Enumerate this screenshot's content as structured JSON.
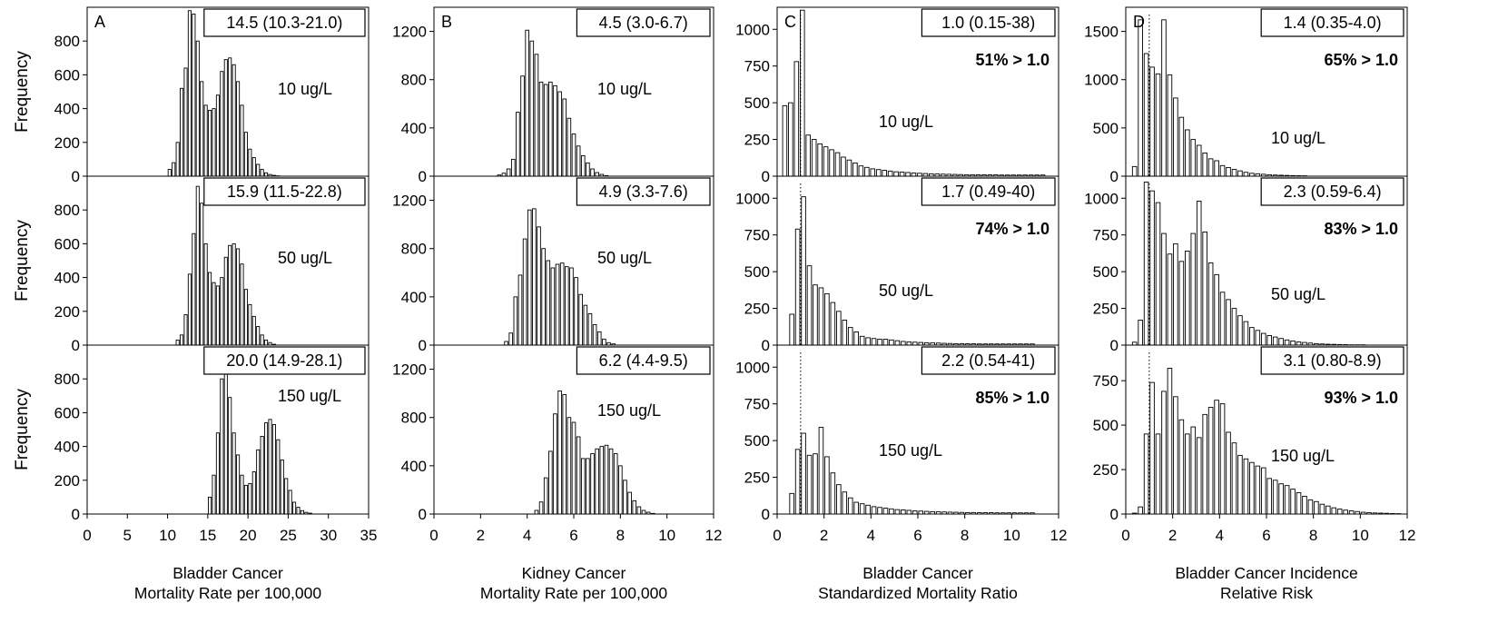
{
  "chart_data": {
    "type": "bar",
    "ylabel": "Frequency",
    "columns": [
      {
        "id": "A",
        "letter": "A",
        "xlabel_lines": [
          "Bladder Cancer",
          "Mortality Rate per 100,000"
        ],
        "xlim": [
          0,
          35
        ],
        "xticks": [
          "0",
          "5",
          "10",
          "15",
          "20",
          "25",
          "30",
          "35"
        ],
        "panels": [
          {
            "dose": "10 ug/L",
            "ci": "14.5 (10.3-21.0)",
            "pct": "",
            "ylim": [
              0,
              1000
            ],
            "yticks": [
              "0",
              "200",
              "400",
              "600",
              "800"
            ],
            "bin_start": 10.0,
            "bin_width": 0.5,
            "values": [
              40,
              80,
              200,
              520,
              640,
              980,
              960,
              800,
              560,
              420,
              390,
              400,
              480,
              620,
              690,
              700,
              660,
              560,
              420,
              260,
              160,
              110,
              70,
              40,
              20,
              10,
              5,
              2
            ]
          },
          {
            "dose": "50 ug/L",
            "ci": "15.9 (11.5-22.8)",
            "pct": "",
            "ylim": [
              0,
              1000
            ],
            "yticks": [
              "0",
              "200",
              "400",
              "600",
              "800"
            ],
            "bin_start": 11.0,
            "bin_width": 0.5,
            "values": [
              30,
              60,
              180,
              420,
              660,
              940,
              840,
              600,
              430,
              370,
              350,
              400,
              520,
              590,
              600,
              570,
              480,
              330,
              240,
              170,
              110,
              60,
              30,
              15,
              5
            ]
          },
          {
            "dose": "150 ug/L",
            "ci": "20.0 (14.9-28.1)",
            "pct": "",
            "ylim": [
              0,
              1000
            ],
            "yticks": [
              "0",
              "200",
              "400",
              "600",
              "800"
            ],
            "bin_start": 15.0,
            "bin_width": 0.5,
            "values": [
              100,
              230,
              480,
              800,
              830,
              690,
              480,
              350,
              230,
              170,
              180,
              250,
              380,
              460,
              540,
              560,
              530,
              440,
              320,
              210,
              140,
              70,
              40,
              20,
              10,
              5
            ]
          }
        ]
      },
      {
        "id": "B",
        "letter": "B",
        "xlabel_lines": [
          "Kidney  Cancer",
          "Mortality Rate per 100,000"
        ],
        "xlim": [
          0,
          12
        ],
        "xticks": [
          "0",
          "2",
          "4",
          "6",
          "8",
          "10",
          "12"
        ],
        "panels": [
          {
            "dose": "10 ug/L",
            "ci": "4.5 (3.0-6.7)",
            "pct": "",
            "ylim": [
              0,
              1400
            ],
            "yticks": [
              "0",
              "400",
              "800",
              "1200"
            ],
            "bin_start": 2.7,
            "bin_width": 0.2,
            "values": [
              10,
              25,
              60,
              140,
              530,
              830,
              1210,
              1120,
              1010,
              780,
              760,
              780,
              750,
              700,
              640,
              480,
              350,
              250,
              170,
              110,
              60,
              30,
              15,
              5
            ]
          },
          {
            "dose": "50 ug/L",
            "ci": "4.9 (3.3-7.6)",
            "pct": "",
            "ylim": [
              0,
              1400
            ],
            "yticks": [
              "0",
              "400",
              "800",
              "1200"
            ],
            "bin_start": 3.0,
            "bin_width": 0.2,
            "values": [
              30,
              100,
              400,
              580,
              880,
              1120,
              1130,
              980,
              800,
              700,
              640,
              670,
              680,
              650,
              640,
              560,
              420,
              330,
              260,
              170,
              110,
              50,
              20,
              10
            ]
          },
          {
            "dose": "150 ug/L",
            "ci": "6.2 (4.4-9.5)",
            "pct": "",
            "ylim": [
              0,
              1400
            ],
            "yticks": [
              "0",
              "400",
              "800",
              "1200"
            ],
            "bin_start": 4.3,
            "bin_width": 0.2,
            "values": [
              30,
              100,
              300,
              520,
              830,
              1020,
              990,
              800,
              760,
              640,
              460,
              460,
              500,
              540,
              560,
              570,
              540,
              500,
              400,
              280,
              180,
              110,
              60,
              30,
              15,
              5
            ]
          }
        ]
      },
      {
        "id": "C",
        "letter": "C",
        "xlabel_lines": [
          "Bladder Cancer",
          "Standardized Mortality Ratio"
        ],
        "xlim": [
          0,
          12
        ],
        "xticks": [
          "0",
          "2",
          "4",
          "6",
          "8",
          "10",
          "12"
        ],
        "ref_line": 1.0,
        "panels": [
          {
            "dose": "10 ug/L",
            "ci": "1.0 (0.15-38)",
            "pct": "51% > 1.0",
            "ylim": [
              0,
              1150
            ],
            "yticks": [
              "0",
              "250",
              "500",
              "750",
              "1000"
            ],
            "bin_start": 0.2,
            "bin_width": 0.25,
            "values": [
              480,
              500,
              780,
              1130,
              280,
              250,
              220,
              200,
              180,
              160,
              130,
              110,
              90,
              70,
              60,
              50,
              45,
              40,
              35,
              30,
              28,
              25,
              22,
              20,
              18,
              16,
              15,
              14,
              13,
              12,
              11,
              10,
              10,
              10,
              9,
              9,
              9,
              8,
              8,
              8,
              8,
              8,
              8,
              8,
              8
            ]
          },
          {
            "dose": "50 ug/L",
            "ci": "1.7 (0.49-40)",
            "pct": "74% > 1.0",
            "ylim": [
              0,
              1150
            ],
            "yticks": [
              "0",
              "250",
              "500",
              "750",
              "1000"
            ],
            "bin_start": 0.5,
            "bin_width": 0.25,
            "values": [
              210,
              790,
              1010,
              540,
              410,
              390,
              350,
              290,
              230,
              170,
              120,
              90,
              60,
              50,
              45,
              40,
              40,
              35,
              30,
              25,
              22,
              20,
              18,
              16,
              15,
              14,
              12,
              11,
              10,
              10,
              9,
              9,
              8,
              8,
              8,
              8,
              8,
              8,
              8,
              8,
              8,
              8
            ]
          },
          {
            "dose": "150 ug/L",
            "ci": "2.2 (0.54-41)",
            "pct": "85% > 1.0",
            "ylim": [
              0,
              1150
            ],
            "yticks": [
              "0",
              "250",
              "500",
              "750",
              "1000"
            ],
            "bin_start": 0.5,
            "bin_width": 0.25,
            "values": [
              140,
              440,
              550,
              400,
              410,
              590,
              390,
              280,
              200,
              150,
              110,
              80,
              70,
              60,
              50,
              45,
              40,
              35,
              30,
              28,
              25,
              22,
              20,
              18,
              16,
              15,
              14,
              13,
              12,
              11,
              10,
              10,
              9,
              9,
              9,
              8,
              8,
              8,
              8,
              8,
              8,
              8
            ]
          }
        ]
      },
      {
        "id": "D",
        "letter": "D",
        "xlabel_lines": [
          "Bladder Cancer Incidence",
          "Relative Risk"
        ],
        "xlim": [
          0,
          12
        ],
        "xticks": [
          "0",
          "2",
          "4",
          "6",
          "8",
          "10",
          "12"
        ],
        "ref_line": 1.0,
        "panels": [
          {
            "dose": "10 ug/L",
            "ci": "1.4 (0.35-4.0)",
            "pct": "65% > 1.0",
            "ylim": [
              0,
              1750
            ],
            "yticks": [
              "0",
              "500",
              "1000",
              "1500"
            ],
            "bin_start": 0.25,
            "bin_width": 0.25,
            "values": [
              100,
              1620,
              1270,
              1130,
              1060,
              1620,
              1050,
              810,
              610,
              480,
              380,
              320,
              240,
              180,
              160,
              110,
              90,
              70,
              55,
              40,
              30,
              25,
              20,
              15,
              12,
              10,
              8,
              6,
              5,
              4
            ]
          },
          {
            "dose": "50 ug/L",
            "ci": "2.3 (0.59-6.4)",
            "pct": "83% > 1.0",
            "ylim": [
              0,
              1150
            ],
            "yticks": [
              "0",
              "250",
              "500",
              "750",
              "1000"
            ],
            "bin_start": 0.25,
            "bin_width": 0.25,
            "values": [
              20,
              170,
              1110,
              1050,
              970,
              760,
              620,
              690,
              570,
              640,
              760,
              980,
              770,
              560,
              480,
              360,
              310,
              250,
              200,
              160,
              120,
              100,
              80,
              65,
              55,
              45,
              35,
              28,
              22,
              18,
              14,
              10,
              8,
              6,
              5,
              4,
              3,
              2,
              2,
              2
            ]
          },
          {
            "dose": "150 ug/L",
            "ci": "3.1 (0.80-8.9)",
            "pct": "93% > 1.0",
            "ylim": [
              0,
              950
            ],
            "yticks": [
              "0",
              "250",
              "500",
              "750"
            ],
            "bin_start": 0.25,
            "bin_width": 0.25,
            "values": [
              5,
              40,
              450,
              740,
              450,
              690,
              820,
              660,
              530,
              450,
              490,
              430,
              560,
              600,
              640,
              620,
              460,
              400,
              330,
              310,
              290,
              270,
              260,
              200,
              190,
              170,
              160,
              140,
              120,
              100,
              80,
              70,
              55,
              45,
              35,
              28,
              22,
              18,
              14,
              10,
              8,
              6,
              5,
              4,
              3,
              2
            ]
          }
        ]
      }
    ]
  }
}
